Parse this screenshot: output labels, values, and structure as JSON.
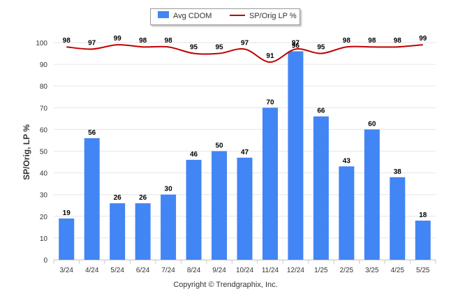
{
  "chart_data": {
    "type": "bar",
    "categories": [
      "3/24",
      "4/24",
      "5/24",
      "6/24",
      "7/24",
      "8/24",
      "9/24",
      "10/24",
      "11/24",
      "12/24",
      "1/25",
      "2/25",
      "3/25",
      "4/25",
      "5/25"
    ],
    "series": [
      {
        "name": "Avg CDOM",
        "type": "bar",
        "color": "#4285f4",
        "values": [
          19,
          56,
          26,
          26,
          30,
          46,
          50,
          47,
          70,
          96,
          66,
          43,
          60,
          38,
          18
        ]
      },
      {
        "name": "SP/Orig LP %",
        "type": "line",
        "color": "#c00000",
        "values": [
          98,
          97,
          99,
          98,
          98,
          95,
          95,
          97,
          91,
          97,
          95,
          98,
          98,
          98,
          99
        ]
      }
    ],
    "ylabel": "SP/Orig, LP %",
    "yticks": [
      0,
      10,
      20,
      30,
      40,
      50,
      60,
      70,
      80,
      90,
      100
    ],
    "ylim": [
      0,
      100
    ],
    "grid": true,
    "legend": "top-center"
  },
  "copyright": "Copyright © Trendgraphix, Inc."
}
